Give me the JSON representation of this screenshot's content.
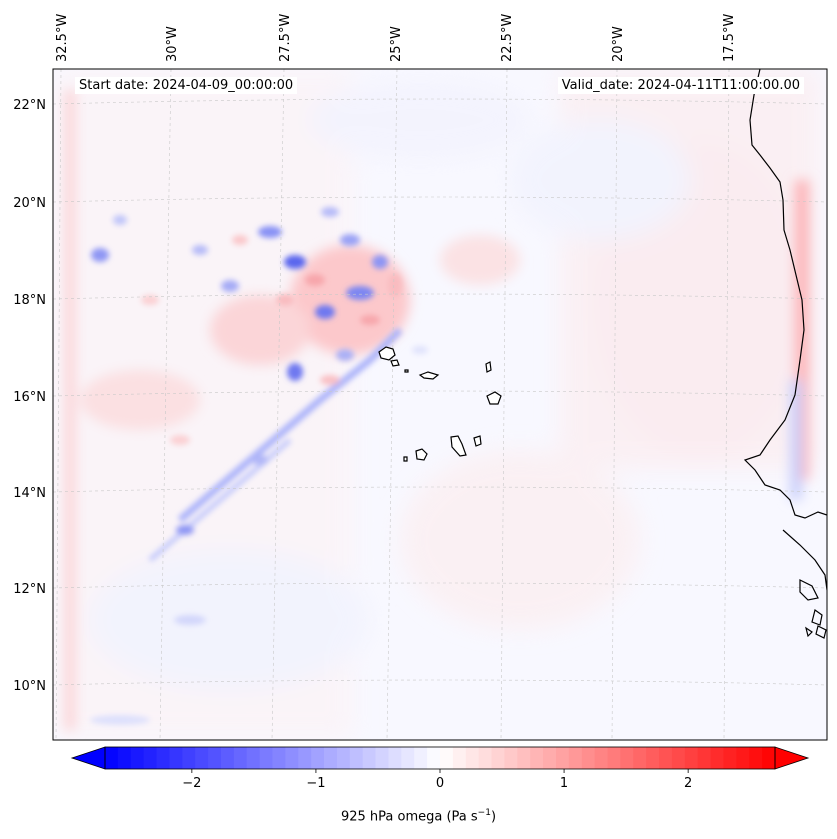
{
  "map": {
    "start_date_text": "Start date: 2024-04-09_00:00:00",
    "valid_date_text": "Valid_date: 2024-04-11T11:00:00.00",
    "variable": "925 hPa omega",
    "units_prefix": "(Pa s",
    "units_exponent": "−1",
    "units_suffix": ")",
    "lon_labels": [
      "32.5°W",
      "30°W",
      "27.5°W",
      "25°W",
      "22.5°W",
      "20°W",
      "17.5°W"
    ],
    "lat_labels": [
      "22°N",
      "20°N",
      "18°N",
      "16°N",
      "14°N",
      "12°N",
      "10°N"
    ],
    "colorbar": {
      "min": -2.7,
      "max": 2.7,
      "ticks": [
        -2,
        -1,
        0,
        1,
        2
      ],
      "tick_labels": [
        "−2",
        "−1",
        "0",
        "1",
        "2"
      ],
      "colormap": "bwr",
      "low_color": "#0000ff",
      "mid_color": "#ffffff",
      "high_color": "#ff0000",
      "extend": "both"
    },
    "coastline_color": "#000000",
    "gridline_color": "#b0b0b0"
  }
}
